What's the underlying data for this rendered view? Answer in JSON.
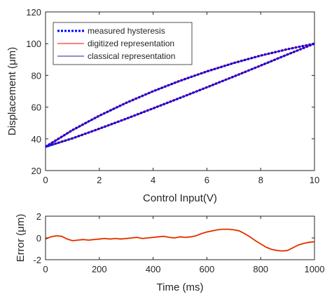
{
  "chart_data": [
    {
      "type": "line",
      "xlabel": "Control Input(V)",
      "ylabel": "Displacement (μm)",
      "xlim": [
        0,
        10
      ],
      "ylim": [
        20,
        120
      ],
      "xticks": [
        "0",
        "2",
        "4",
        "6",
        "8",
        "10"
      ],
      "yticks": [
        "20",
        "40",
        "60",
        "80",
        "100",
        "120"
      ],
      "grid": false,
      "legend_position": "top-left",
      "series": [
        {
          "name": "measured hysteresis",
          "color": "#0000ff",
          "style": "dotted",
          "branches": [
            {
              "x": [
                0,
                1,
                2,
                3,
                4,
                5,
                6,
                7,
                8,
                9,
                10
              ],
              "y": [
                35.0,
                45.5,
                54.6,
                62.7,
                70.0,
                76.6,
                82.5,
                87.8,
                92.5,
                96.5,
                100.0
              ]
            },
            {
              "x": [
                10,
                9,
                8,
                7,
                6,
                5,
                4,
                3,
                2,
                1,
                0
              ],
              "y": [
                100.0,
                93.2,
                86.2,
                79.3,
                72.5,
                65.8,
                59.2,
                52.7,
                46.4,
                40.3,
                35.0
              ]
            }
          ]
        },
        {
          "name": "digitized representation",
          "color": "#ff0000",
          "style": "solid",
          "branches": [
            {
              "x": [
                0,
                1,
                2,
                3,
                4,
                5,
                6,
                7,
                8,
                9,
                10
              ],
              "y": [
                35.3,
                45.7,
                54.8,
                62.9,
                70.2,
                76.8,
                82.7,
                88.0,
                92.6,
                96.6,
                100.0
              ]
            },
            {
              "x": [
                10,
                9,
                8,
                7,
                6,
                5,
                4,
                3,
                2,
                1,
                0
              ],
              "y": [
                100.0,
                93.4,
                86.4,
                79.5,
                72.7,
                66.0,
                59.4,
                52.9,
                46.6,
                40.5,
                35.3
              ]
            }
          ]
        },
        {
          "name": "classical representation",
          "color": "#1f1f8f",
          "style": "solid",
          "branches": [
            {
              "x": [
                0,
                1,
                2,
                3,
                4,
                5,
                6,
                7,
                8,
                9,
                10
              ],
              "y": [
                34.6,
                45.2,
                54.3,
                62.5,
                69.8,
                76.4,
                82.3,
                87.6,
                92.3,
                96.4,
                100.0
              ]
            },
            {
              "x": [
                10,
                9,
                8,
                7,
                6,
                5,
                4,
                3,
                2,
                1,
                0
              ],
              "y": [
                100.0,
                93.0,
                86.0,
                79.1,
                72.3,
                65.6,
                59.0,
                52.5,
                46.2,
                40.1,
                34.6
              ]
            }
          ]
        }
      ]
    },
    {
      "type": "line",
      "xlabel": "Time (ms)",
      "ylabel": "Error (μm)",
      "xlim": [
        0,
        1000
      ],
      "ylim": [
        -2,
        2
      ],
      "xticks": [
        "0",
        "200",
        "400",
        "600",
        "800",
        "1000"
      ],
      "yticks": [
        "-2",
        "0",
        "2"
      ],
      "grid": false,
      "series": [
        {
          "color": "#ff0000",
          "x": [
            0,
            20,
            40,
            60,
            80,
            100,
            120,
            140,
            160,
            180,
            200,
            220,
            240,
            260,
            280,
            300,
            320,
            340,
            360,
            380,
            400,
            420,
            440,
            460,
            480,
            500,
            520,
            540,
            560,
            580,
            600,
            620,
            640,
            660,
            680,
            700,
            720,
            740,
            760,
            780,
            800,
            820,
            840,
            860,
            880,
            900,
            920,
            940,
            960,
            980,
            1000
          ],
          "y": [
            -0.1,
            0.1,
            0.2,
            0.15,
            -0.1,
            -0.25,
            -0.2,
            -0.15,
            -0.2,
            -0.15,
            -0.1,
            -0.05,
            -0.1,
            -0.05,
            -0.1,
            -0.05,
            0.0,
            0.05,
            -0.05,
            0.0,
            0.05,
            0.1,
            0.15,
            0.05,
            0.0,
            0.1,
            0.05,
            0.1,
            0.2,
            0.4,
            0.55,
            0.65,
            0.75,
            0.8,
            0.8,
            0.75,
            0.65,
            0.4,
            0.1,
            -0.25,
            -0.55,
            -0.85,
            -1.05,
            -1.15,
            -1.2,
            -1.15,
            -0.9,
            -0.65,
            -0.5,
            -0.4,
            -0.35
          ]
        }
      ]
    }
  ]
}
